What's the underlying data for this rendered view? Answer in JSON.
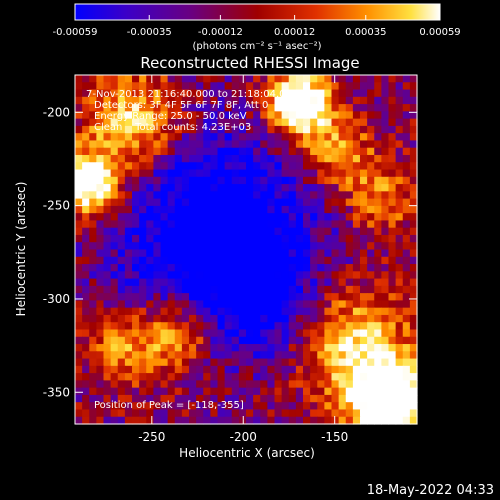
{
  "colorbar": {
    "tick_labels": [
      "-0.00059",
      "-0.00035",
      "-0.00012",
      "0.00012",
      "0.00035",
      "0.00059"
    ],
    "tick_values": [
      -0.00059,
      -0.00035,
      -0.00012,
      0.00012,
      0.00035,
      0.00059
    ],
    "range": [
      -0.00059,
      0.00059
    ],
    "units": "(photons cm⁻² s⁻¹ asec⁻²)",
    "colors": [
      "#0000ff",
      "#3b00c8",
      "#6a0080",
      "#a00000",
      "#e03000",
      "#ff9000",
      "#ffe040",
      "#ffffff"
    ]
  },
  "chart_data": {
    "type": "heatmap",
    "title": "Reconstructed RHESSI Image",
    "xlabel": "Heliocentric X (arcsec)",
    "ylabel": "Heliocentric Y (arcsec)",
    "x_ticks": [
      -250,
      -200,
      -150
    ],
    "y_ticks": [
      -200,
      -250,
      -300,
      -350
    ],
    "xlim": [
      -292,
      -105
    ],
    "ylim": [
      -367,
      -180
    ],
    "annotations": {
      "time_range": "7-Nov-2013 21:16:40.000 to 21:18:04.000",
      "detectors": "Detectors: 3F 4F 5F 6F 7F 8F, Att 0",
      "energy_range": "Energy Range: 25.0 - 50.0 keV",
      "clean": "Clean    Total counts: 4.23E+03",
      "peak": "Position of Peak = [-118,-355]"
    },
    "peak": [
      -118,
      -355
    ]
  },
  "footer": {
    "timestamp": "18-May-2022 04:33"
  }
}
